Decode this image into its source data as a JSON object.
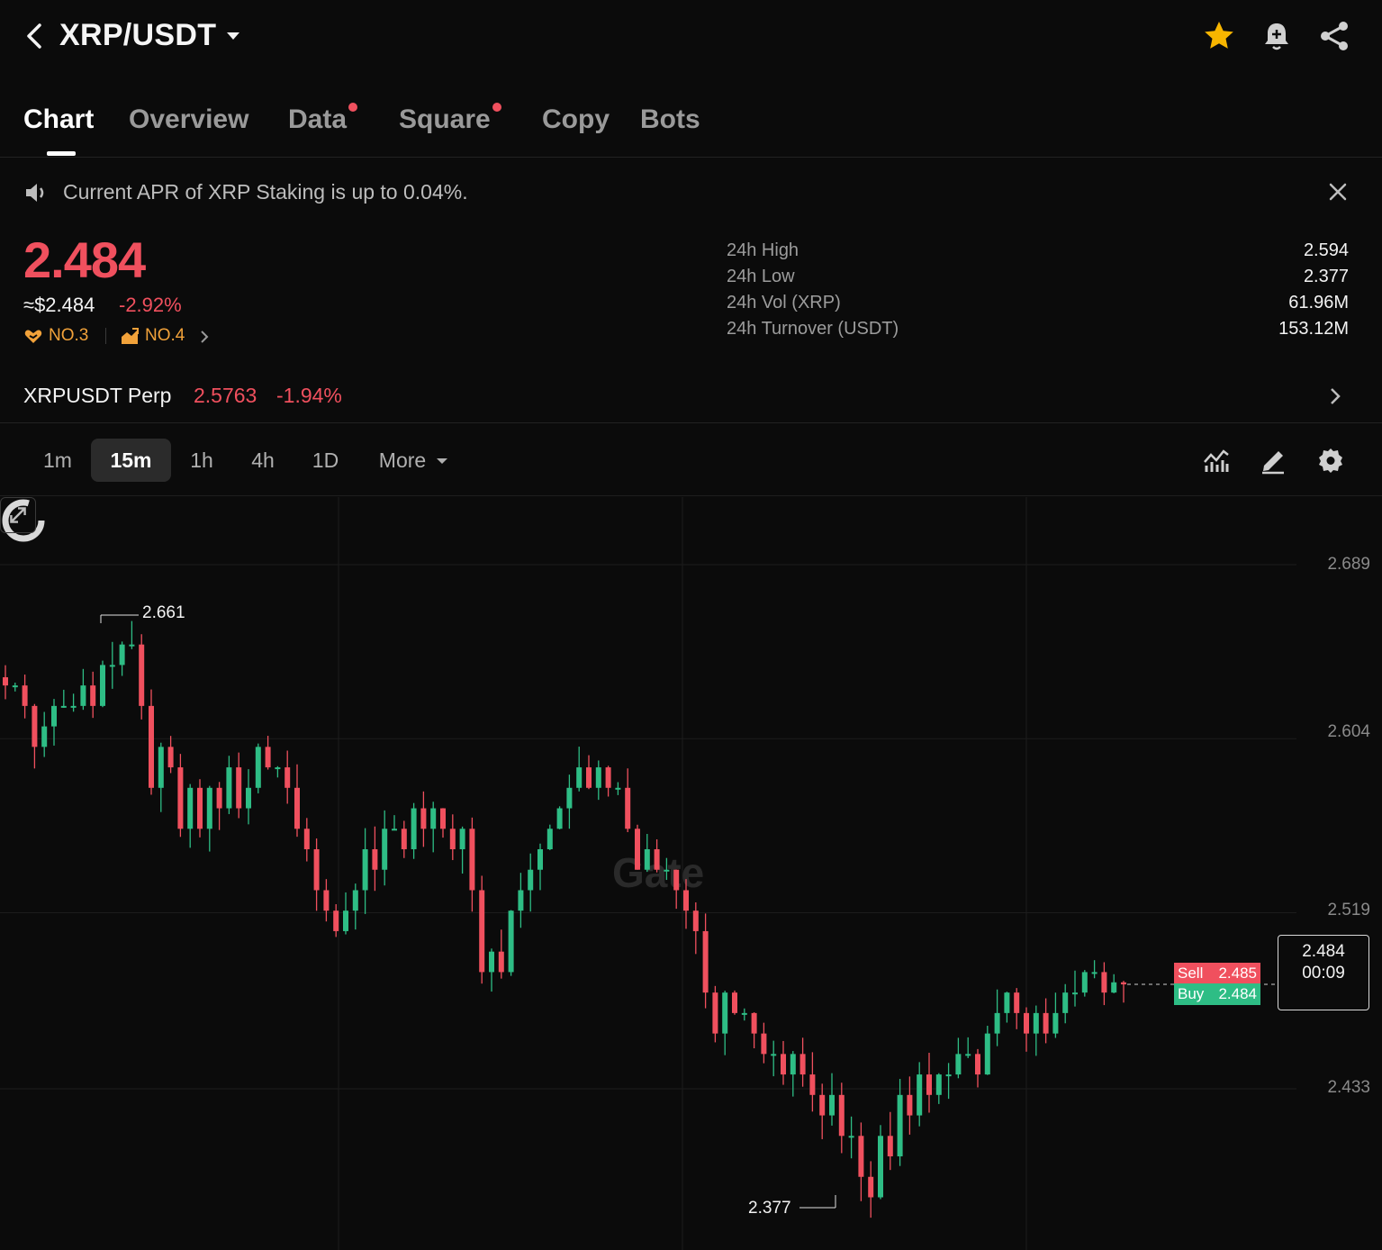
{
  "header": {
    "pair": "XRP/USDT",
    "icons": [
      "back-arrow-icon",
      "caret-down-icon",
      "star-icon",
      "bell-plus-icon",
      "share-icon"
    ],
    "colors": {
      "star": "#f7b500",
      "icon": "#d0d0d0"
    }
  },
  "tabs": [
    {
      "label": "Chart",
      "active": true,
      "dot": false
    },
    {
      "label": "Overview",
      "active": false,
      "dot": false
    },
    {
      "label": "Data",
      "active": false,
      "dot": true
    },
    {
      "label": "Square",
      "active": false,
      "dot": true
    },
    {
      "label": "Copy",
      "active": false,
      "dot": false
    },
    {
      "label": "Bots",
      "active": false,
      "dot": false
    }
  ],
  "notice": {
    "text": "Current APR of XRP Staking is up to 0.04%."
  },
  "ticker": {
    "price": "2.484",
    "usd": "≈$2.484",
    "change": "-2.92%",
    "rank1": "NO.3",
    "rank2": "NO.4",
    "stats": [
      {
        "label": "24h High",
        "value": "2.594"
      },
      {
        "label": "24h Low",
        "value": "2.377"
      },
      {
        "label": "24h Vol (XRP)",
        "value": "61.96M"
      },
      {
        "label": "24h Turnover (USDT)",
        "value": "153.12M"
      }
    ]
  },
  "perp": {
    "name": "XRPUSDT Perp",
    "price": "2.5763",
    "change": "-1.94%"
  },
  "intervals": [
    {
      "label": "1m",
      "active": false
    },
    {
      "label": "15m",
      "active": true
    },
    {
      "label": "1h",
      "active": false
    },
    {
      "label": "4h",
      "active": false
    },
    {
      "label": "1D",
      "active": false
    },
    {
      "label": "More",
      "active": false
    }
  ],
  "colors": {
    "up": "#2ebd85",
    "down": "#f0505e",
    "accent_red": "#f0505e",
    "rank": "#f2a23a"
  },
  "watermark": "Gate",
  "orderbook": {
    "sell_label": "Sell",
    "sell_value": "2.485",
    "buy_label": "Buy",
    "buy_value": "2.484",
    "last_price": "2.484",
    "countdown": "00:09"
  },
  "chart_data": {
    "type": "candlestick",
    "interval": "15m",
    "y_ticks": [
      2.689,
      2.604,
      2.519,
      2.433
    ],
    "ylim": [
      2.36,
      2.72
    ],
    "high_label": "2.661",
    "low_label": "2.377",
    "close_series": [
      2.63,
      2.63,
      2.62,
      2.6,
      2.61,
      2.62,
      2.62,
      2.62,
      2.63,
      2.62,
      2.64,
      2.64,
      2.65,
      2.65,
      2.62,
      2.58,
      2.6,
      2.59,
      2.56,
      2.58,
      2.56,
      2.58,
      2.57,
      2.59,
      2.57,
      2.58,
      2.6,
      2.59,
      2.59,
      2.58,
      2.56,
      2.55,
      2.53,
      2.52,
      2.51,
      2.52,
      2.53,
      2.55,
      2.54,
      2.56,
      2.56,
      2.55,
      2.57,
      2.56,
      2.57,
      2.56,
      2.55,
      2.56,
      2.53,
      2.49,
      2.5,
      2.49,
      2.52,
      2.53,
      2.54,
      2.55,
      2.56,
      2.57,
      2.58,
      2.59,
      2.58,
      2.59,
      2.58,
      2.58,
      2.56,
      2.54,
      2.55,
      2.54,
      2.54,
      2.53,
      2.52,
      2.51,
      2.48,
      2.46,
      2.48,
      2.47,
      2.47,
      2.46,
      2.45,
      2.45,
      2.44,
      2.45,
      2.44,
      2.43,
      2.42,
      2.43,
      2.41,
      2.41,
      2.39,
      2.38,
      2.41,
      2.4,
      2.43,
      2.42,
      2.44,
      2.43,
      2.44,
      2.44,
      2.45,
      2.45,
      2.44,
      2.46,
      2.47,
      2.48,
      2.47,
      2.46,
      2.47,
      2.46,
      2.47,
      2.48,
      2.48,
      2.49,
      2.49,
      2.48,
      2.485,
      2.484
    ]
  }
}
